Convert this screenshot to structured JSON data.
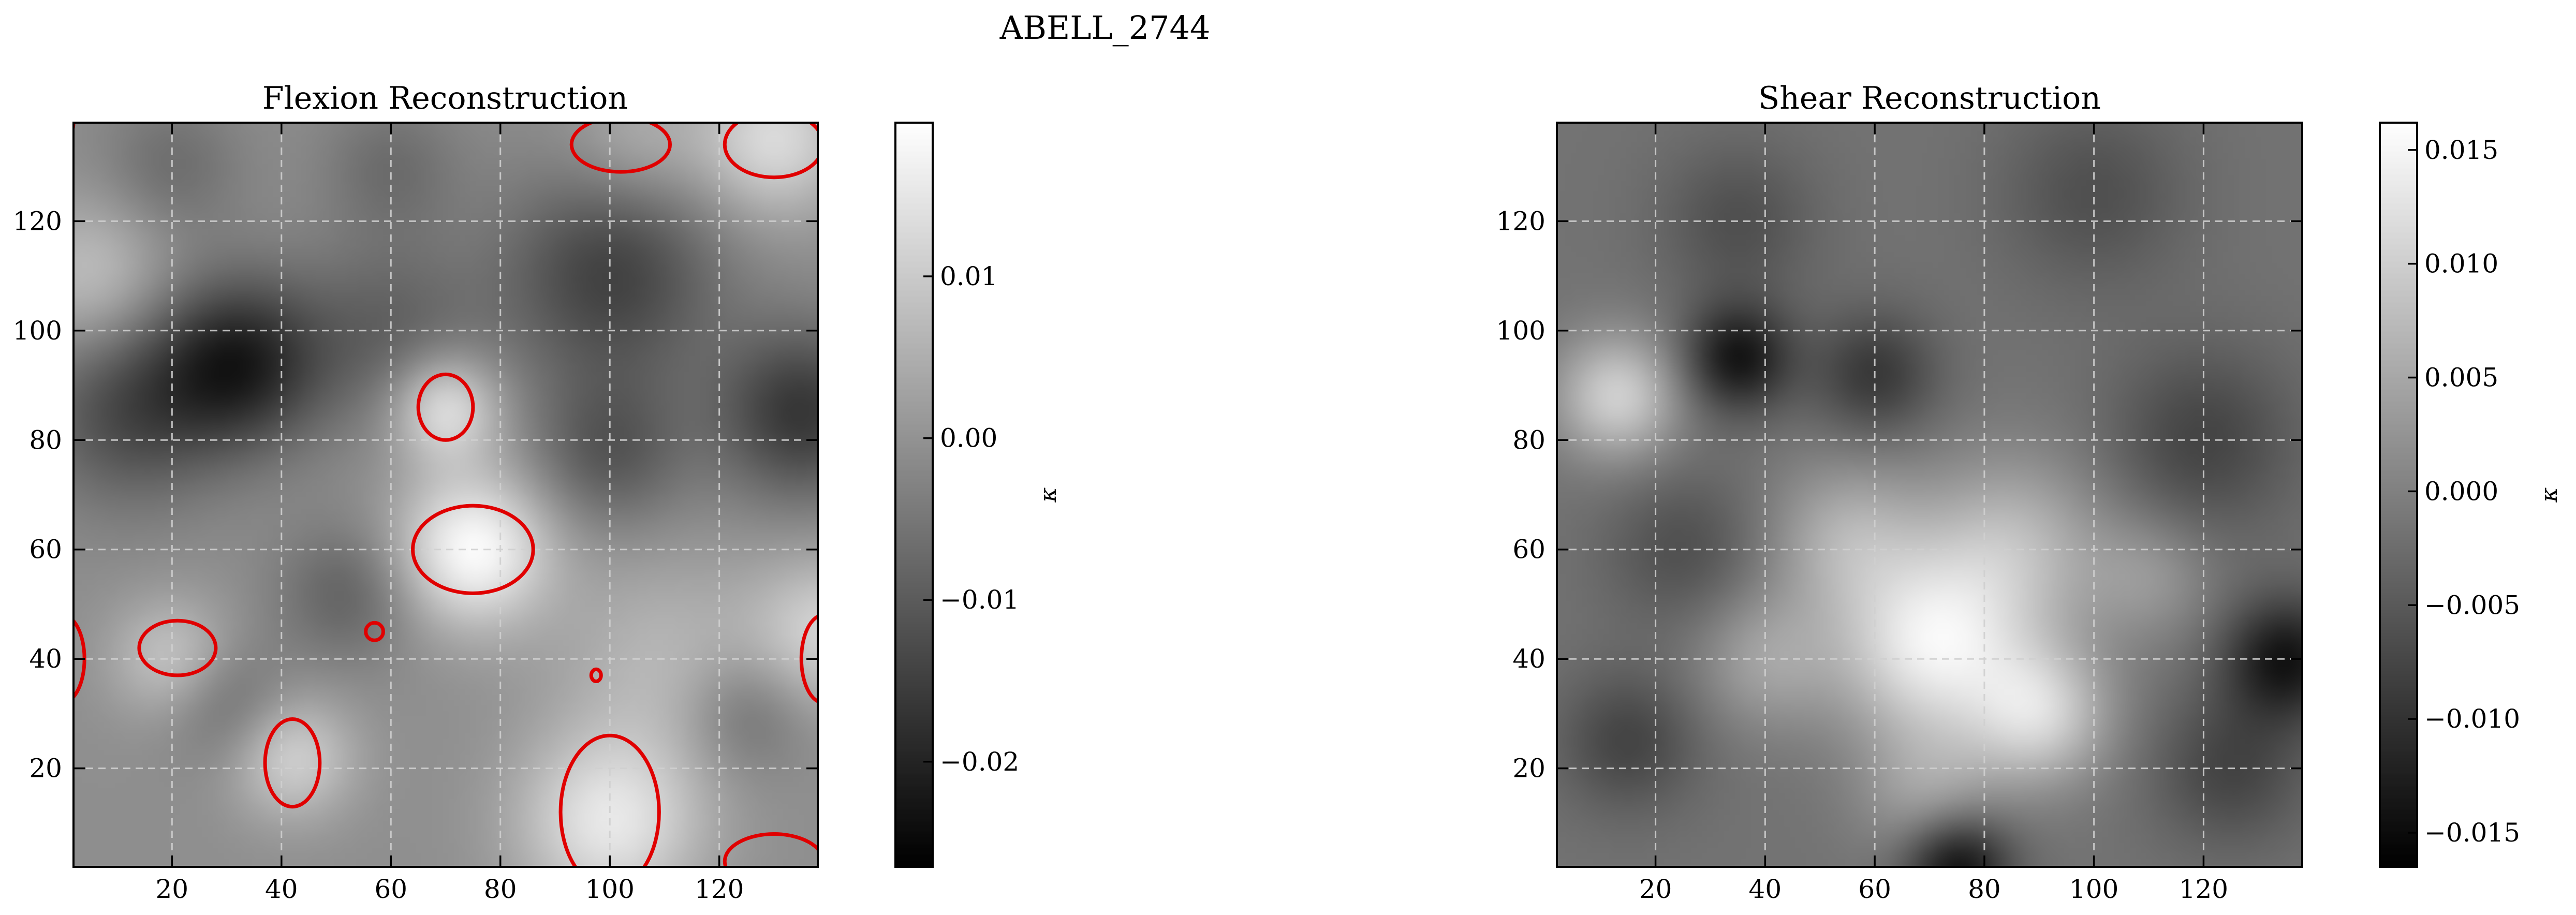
{
  "figure": {
    "suptitle": "ABELL_2744"
  },
  "chart_data": [
    {
      "type": "heatmap",
      "title": "Flexion Reconstruction",
      "colormap": "gray",
      "xlim": [
        2,
        138
      ],
      "ylim": [
        2,
        138
      ],
      "xticks": [
        20,
        40,
        60,
        80,
        100,
        120
      ],
      "yticks": [
        20,
        40,
        60,
        80,
        100,
        120
      ],
      "grid": true,
      "colorbar": {
        "label": "κ",
        "range": [
          -0.0265,
          0.0195
        ],
        "ticks": [
          0.01,
          0.0,
          -0.01,
          -0.02
        ],
        "tick_labels": [
          "0.01",
          "0.00",
          "−0.01",
          "−0.02"
        ]
      },
      "contour_color": "#e00000",
      "blobs": [
        {
          "x": 75,
          "y": 60,
          "amp": 1.0,
          "s": 10
        },
        {
          "x": 70,
          "y": 86,
          "amp": 0.8,
          "s": 7
        },
        {
          "x": 42,
          "y": 22,
          "amp": 0.6,
          "s": 8
        },
        {
          "x": 100,
          "y": 10,
          "amp": 0.8,
          "s": 12
        },
        {
          "x": 20,
          "y": 40,
          "amp": 0.5,
          "s": 8
        },
        {
          "x": 130,
          "y": 135,
          "amp": 0.7,
          "s": 10
        },
        {
          "x": 105,
          "y": 135,
          "amp": 0.3,
          "s": 9
        },
        {
          "x": 5,
          "y": 110,
          "amp": 0.45,
          "s": 10
        },
        {
          "x": 140,
          "y": 45,
          "amp": 0.6,
          "s": 10
        },
        {
          "x": 110,
          "y": 40,
          "amp": 0.35,
          "s": 14
        },
        {
          "x": 32,
          "y": 94,
          "amp": -1.0,
          "s": 11
        },
        {
          "x": 12,
          "y": 85,
          "amp": -0.6,
          "s": 12
        },
        {
          "x": 135,
          "y": 85,
          "amp": -0.8,
          "s": 11
        },
        {
          "x": 100,
          "y": 110,
          "amp": -0.7,
          "s": 14
        },
        {
          "x": 60,
          "y": 100,
          "amp": -0.4,
          "s": 12
        },
        {
          "x": 100,
          "y": 78,
          "amp": -0.5,
          "s": 10
        },
        {
          "x": 52,
          "y": 52,
          "amp": -0.4,
          "s": 9
        },
        {
          "x": 30,
          "y": 32,
          "amp": -0.35,
          "s": 8
        },
        {
          "x": 125,
          "y": 30,
          "amp": -0.35,
          "s": 8
        },
        {
          "x": 60,
          "y": 130,
          "amp": -0.3,
          "s": 9
        },
        {
          "x": 20,
          "y": 130,
          "amp": -0.3,
          "s": 9
        }
      ],
      "contours": [
        {
          "x": 75,
          "y": 60,
          "rx": 11,
          "ry": 8
        },
        {
          "x": 70,
          "y": 86,
          "rx": 5,
          "ry": 6
        },
        {
          "x": 21,
          "y": 42,
          "rx": 7,
          "ry": 5
        },
        {
          "x": 42,
          "y": 21,
          "rx": 5,
          "ry": 8
        },
        {
          "x": 100,
          "y": 12,
          "rx": 9,
          "ry": 14
        },
        {
          "x": 57,
          "y": 45,
          "rx": 1.6,
          "ry": 1.6
        },
        {
          "x": 97.5,
          "y": 37,
          "rx": 0.9,
          "ry": 1.1
        },
        {
          "x": 130,
          "y": 134,
          "rx": 9,
          "ry": 6
        },
        {
          "x": 102,
          "y": 134,
          "rx": 9,
          "ry": 5
        },
        {
          "x": 139,
          "y": 40,
          "rx": 4,
          "ry": 8
        },
        {
          "x": 0,
          "y": 40,
          "rx": 4,
          "ry": 8
        },
        {
          "x": 130,
          "y": 3,
          "rx": 9,
          "ry": 5
        },
        {
          "x": 0,
          "y": 138,
          "rx": 2,
          "ry": 3
        }
      ]
    },
    {
      "type": "heatmap",
      "title": "Shear Reconstruction",
      "colormap": "gray",
      "xlim": [
        2,
        138
      ],
      "ylim": [
        2,
        138
      ],
      "xticks": [
        20,
        40,
        60,
        80,
        100,
        120
      ],
      "yticks": [
        20,
        40,
        60,
        80,
        100,
        120
      ],
      "grid": true,
      "colorbar": {
        "label": "κ",
        "range": [
          -0.0165,
          0.0162
        ],
        "ticks": [
          0.015,
          0.01,
          0.005,
          0.0,
          -0.005,
          -0.01,
          -0.015
        ],
        "tick_labels": [
          "0.015",
          "0.010",
          "0.005",
          "0.000",
          "−0.005",
          "−0.010",
          "−0.015"
        ]
      },
      "blobs": [
        {
          "x": 70,
          "y": 42,
          "amp": 1.0,
          "s": 12
        },
        {
          "x": 90,
          "y": 30,
          "amp": 0.8,
          "s": 9
        },
        {
          "x": 13,
          "y": 88,
          "amp": 0.8,
          "s": 8
        },
        {
          "x": 85,
          "y": 60,
          "amp": 0.6,
          "s": 12
        },
        {
          "x": 55,
          "y": 62,
          "amp": 0.5,
          "s": 10
        },
        {
          "x": 40,
          "y": 40,
          "amp": 0.4,
          "s": 9
        },
        {
          "x": 70,
          "y": 15,
          "amp": 0.4,
          "s": 9
        },
        {
          "x": 110,
          "y": 55,
          "amp": 0.3,
          "s": 8
        },
        {
          "x": 35,
          "y": 95,
          "amp": -0.8,
          "s": 7
        },
        {
          "x": 60,
          "y": 92,
          "amp": -0.5,
          "s": 8
        },
        {
          "x": 75,
          "y": 2,
          "amp": -0.9,
          "s": 7
        },
        {
          "x": 135,
          "y": 40,
          "amp": -0.8,
          "s": 8
        },
        {
          "x": 120,
          "y": 80,
          "amp": -0.4,
          "s": 12
        },
        {
          "x": 25,
          "y": 60,
          "amp": -0.3,
          "s": 10
        },
        {
          "x": 15,
          "y": 25,
          "amp": -0.4,
          "s": 9
        },
        {
          "x": 125,
          "y": 20,
          "amp": -0.4,
          "s": 10
        },
        {
          "x": 100,
          "y": 125,
          "amp": -0.3,
          "s": 12
        },
        {
          "x": 35,
          "y": 120,
          "amp": -0.3,
          "s": 10
        }
      ],
      "contours": []
    }
  ]
}
